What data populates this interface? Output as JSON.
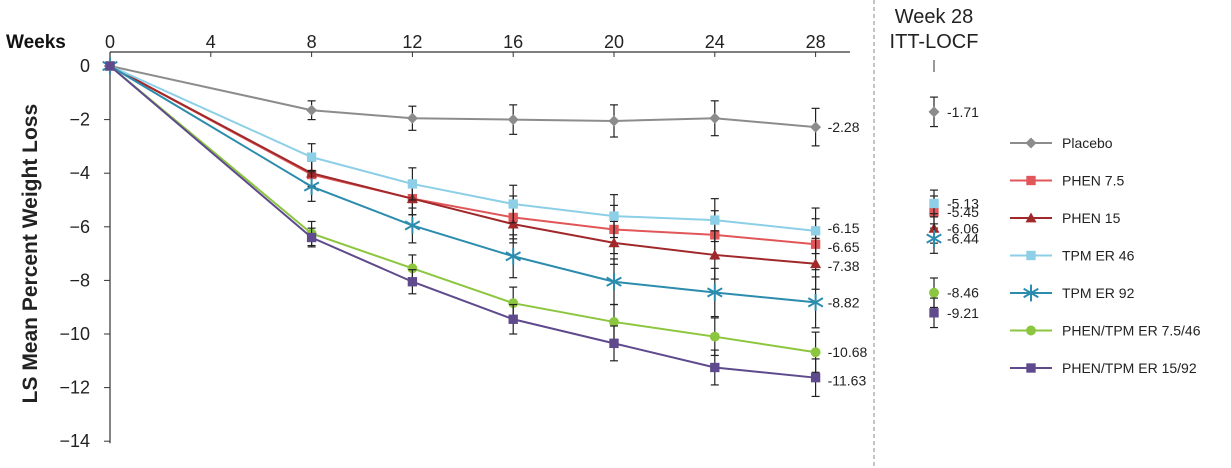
{
  "chart_data": {
    "type": "line",
    "xlabel": "Weeks",
    "ylabel": "LS Mean Percent Weight Loss",
    "x_ticks": [
      "0",
      "4",
      "8",
      "12",
      "16",
      "20",
      "24",
      "28"
    ],
    "y_ticks": [
      "0",
      "−2",
      "−4",
      "−6",
      "−8",
      "−10",
      "−12",
      "−14"
    ],
    "xlim": [
      0,
      30
    ],
    "ylim": [
      -14,
      0
    ],
    "x": [
      0,
      8,
      12,
      16,
      20,
      24,
      28
    ],
    "grid": false,
    "legend_position": "right",
    "endpoint_header": [
      "Week 28",
      "ITT-LOCF"
    ],
    "series": [
      {
        "name": "Placebo",
        "color": "#8c8c8c",
        "marker": "diamond",
        "values": [
          0,
          -1.65,
          -1.95,
          -2.0,
          -2.05,
          -1.95,
          -2.28
        ],
        "errors": [
          0,
          0.35,
          0.45,
          0.55,
          0.6,
          0.65,
          0.7
        ],
        "end_label": "-2.28",
        "itt_value": -1.71,
        "itt_error": 0.55,
        "itt_label": "-1.71"
      },
      {
        "name": "PHEN 7.5",
        "color": "#e15759",
        "marker": "square",
        "values": [
          0,
          -4.05,
          -4.95,
          -5.65,
          -6.1,
          -6.3,
          -6.65
        ],
        "errors": [
          0,
          0.5,
          0.6,
          0.8,
          0.9,
          0.9,
          0.95
        ],
        "end_label": "-6.65",
        "itt_value": -5.45,
        "itt_error": 0.6,
        "itt_label": "-5.45"
      },
      {
        "name": "PHEN 15",
        "color": "#a1282a",
        "marker": "triangle",
        "values": [
          0,
          -4.0,
          -4.95,
          -5.9,
          -6.6,
          -7.05,
          -7.38
        ],
        "errors": [
          0,
          0.5,
          0.6,
          0.7,
          0.8,
          0.9,
          0.95
        ],
        "end_label": "-7.38",
        "itt_value": -6.06,
        "itt_error": 0.55,
        "itt_label": "-6.06"
      },
      {
        "name": "TPM ER 46",
        "color": "#8ccfe6",
        "marker": "square",
        "values": [
          0,
          -3.4,
          -4.4,
          -5.15,
          -5.6,
          -5.75,
          -6.15
        ],
        "errors": [
          0,
          0.5,
          0.6,
          0.7,
          0.8,
          0.8,
          0.85
        ],
        "end_label": "-6.15",
        "itt_value": -5.13,
        "itt_error": 0.5,
        "itt_label": "-5.13"
      },
      {
        "name": "TPM ER 92",
        "color": "#2b8cae",
        "marker": "star",
        "values": [
          0,
          -4.5,
          -5.95,
          -7.1,
          -8.05,
          -8.45,
          -8.82
        ],
        "errors": [
          0,
          0.55,
          0.65,
          0.8,
          0.85,
          0.9,
          0.95
        ],
        "end_label": "-8.82",
        "itt_value": -6.44,
        "itt_error": 0.55,
        "itt_label": "-6.44"
      },
      {
        "name": "PHEN/TPM ER 7.5/46",
        "color": "#8cc63f",
        "marker": "circle",
        "values": [
          0,
          -6.25,
          -7.55,
          -8.85,
          -9.55,
          -10.1,
          -10.68
        ],
        "errors": [
          0,
          0.45,
          0.5,
          0.6,
          0.65,
          0.7,
          0.75
        ],
        "end_label": "-10.68",
        "itt_value": -8.46,
        "itt_error": 0.55,
        "itt_label": "-8.46"
      },
      {
        "name": "PHEN/TPM ER 15/92",
        "color": "#5e4a8c",
        "marker": "square",
        "values": [
          0,
          -6.4,
          -8.05,
          -9.45,
          -10.35,
          -11.25,
          -11.63
        ],
        "errors": [
          0,
          0.35,
          0.45,
          0.55,
          0.65,
          0.65,
          0.7
        ],
        "end_label": "-11.63",
        "itt_value": -9.21,
        "itt_error": 0.55,
        "itt_label": "-9.21"
      }
    ]
  }
}
